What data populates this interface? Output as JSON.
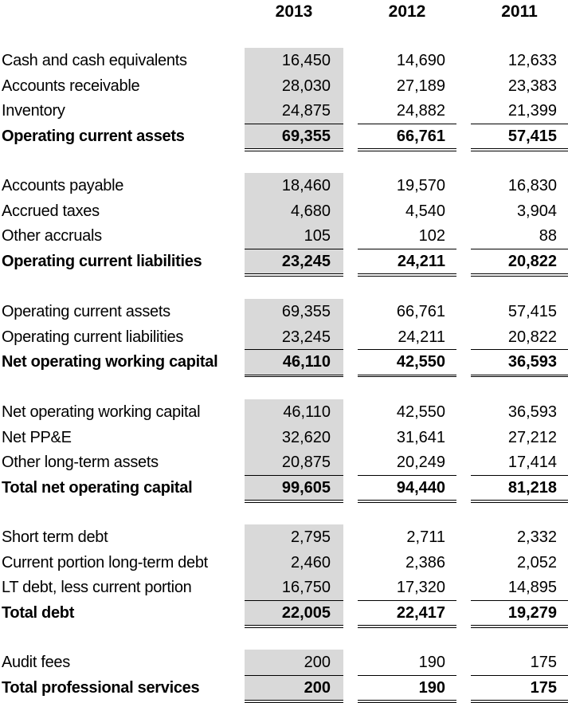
{
  "columns": [
    "2013",
    "2012",
    "2011"
  ],
  "sections": [
    {
      "rows": [
        {
          "label": "Cash and cash equivalents",
          "values": [
            "16,450",
            "14,690",
            "12,633"
          ]
        },
        {
          "label": "Accounts receivable",
          "values": [
            "28,030",
            "27,189",
            "23,383"
          ]
        },
        {
          "label": "Inventory",
          "values": [
            "24,875",
            "24,882",
            "21,399"
          ]
        }
      ],
      "total": {
        "label": "Operating current assets",
        "values": [
          "69,355",
          "66,761",
          "57,415"
        ]
      }
    },
    {
      "rows": [
        {
          "label": "Accounts payable",
          "values": [
            "18,460",
            "19,570",
            "16,830"
          ]
        },
        {
          "label": "Accrued taxes",
          "values": [
            "4,680",
            "4,540",
            "3,904"
          ]
        },
        {
          "label": "Other accruals",
          "values": [
            "105",
            "102",
            "88"
          ]
        }
      ],
      "total": {
        "label": "Operating current liabilities",
        "values": [
          "23,245",
          "24,211",
          "20,822"
        ]
      }
    },
    {
      "rows": [
        {
          "label": "Operating current assets",
          "values": [
            "69,355",
            "66,761",
            "57,415"
          ]
        },
        {
          "label": "Operating current liabilities",
          "values": [
            "23,245",
            "24,211",
            "20,822"
          ]
        }
      ],
      "total": {
        "label": "Net operating working capital",
        "values": [
          "46,110",
          "42,550",
          "36,593"
        ]
      }
    },
    {
      "rows": [
        {
          "label": "Net operating working capital",
          "values": [
            "46,110",
            "42,550",
            "36,593"
          ]
        },
        {
          "label": "Net PP&E",
          "values": [
            "32,620",
            "31,641",
            "27,212"
          ]
        },
        {
          "label": "Other long-term assets",
          "values": [
            "20,875",
            "20,249",
            "17,414"
          ]
        }
      ],
      "total": {
        "label": "Total net operating capital",
        "values": [
          "99,605",
          "94,440",
          "81,218"
        ]
      }
    },
    {
      "rows": [
        {
          "label": "Short term debt",
          "values": [
            "2,795",
            "2,711",
            "2,332"
          ]
        },
        {
          "label": "Current portion long-term debt",
          "values": [
            "2,460",
            "2,386",
            "2,052"
          ]
        },
        {
          "label": "LT debt, less current portion",
          "values": [
            "16,750",
            "17,320",
            "14,895"
          ]
        }
      ],
      "total": {
        "label": "Total debt",
        "values": [
          "22,005",
          "22,417",
          "19,279"
        ]
      }
    },
    {
      "rows": [
        {
          "label": "Audit fees",
          "values": [
            "200",
            "190",
            "175"
          ]
        }
      ],
      "total": {
        "label": "Total professional services",
        "values": [
          "200",
          "190",
          "175"
        ]
      }
    }
  ],
  "colors": {
    "shade": "#d9d9d9",
    "text": "#000000",
    "rule": "#000000"
  }
}
